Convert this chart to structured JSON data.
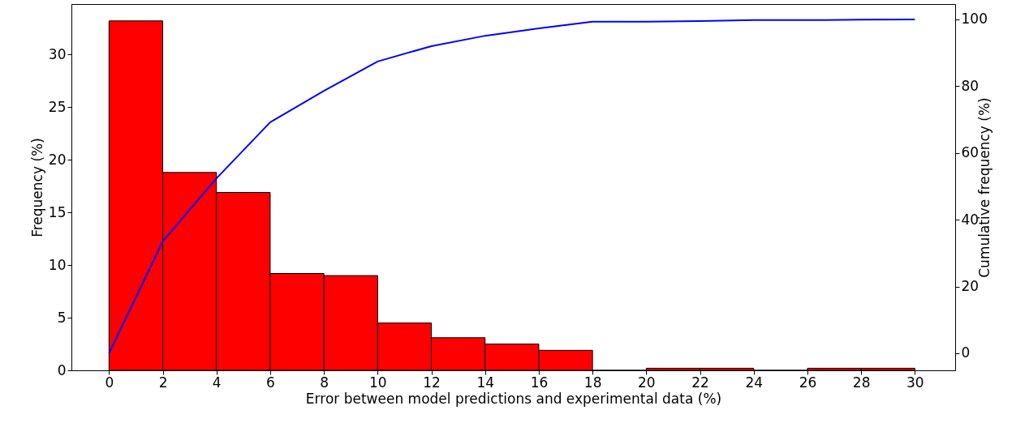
{
  "chart_data": {
    "type": "histogram",
    "xlabel": "Error between model predictions and experimental data (%)",
    "ylabel": "Frequency (%)",
    "y2label": "Cumulative frequency (%)",
    "bins": [
      0,
      2,
      4,
      6,
      8,
      10,
      12,
      14,
      16,
      18,
      20,
      22,
      24,
      26,
      28,
      30
    ],
    "series": [
      {
        "color": "#ff0000",
        "values": [
          33.2,
          18.8,
          16.9,
          9.2,
          9.0,
          4.5,
          3.1,
          2.5,
          1.9,
          0,
          0.2,
          0.2,
          0,
          0.2,
          0.2
        ]
      },
      {
        "type": "line",
        "axis": "y2",
        "color": "#0000ff",
        "x": [
          0,
          2,
          4,
          6,
          8,
          10,
          12,
          14,
          16,
          18,
          20,
          22,
          24,
          26,
          28,
          30
        ],
        "values": [
          0,
          33.5,
          52.4,
          69.2,
          78.6,
          87.4,
          92,
          95.1,
          97.3,
          99.3,
          99.3,
          99.5,
          99.8,
          99.8,
          99.9,
          100
        ]
      }
    ],
    "xlim": [
      -1.4,
      31.5
    ],
    "xticks": [
      0,
      2,
      4,
      6,
      8,
      10,
      12,
      14,
      16,
      18,
      20,
      22,
      24,
      26,
      28,
      30
    ],
    "ylim": [
      0,
      34.8
    ],
    "yticks": [
      0,
      5,
      10,
      15,
      20,
      25,
      30
    ],
    "y2lim": [
      -5.1,
      104.6
    ],
    "y2ticks": [
      0,
      20,
      40,
      60,
      80,
      100
    ]
  }
}
